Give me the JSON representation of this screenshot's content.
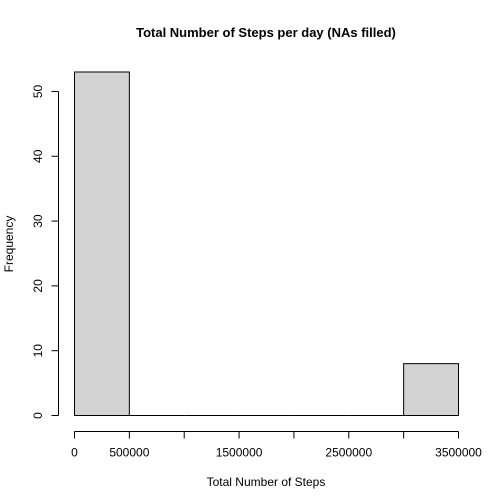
{
  "chart_data": {
    "type": "bar",
    "title": "Total Number of Steps per day (NAs filled)",
    "xlabel": "Total Number of Steps",
    "ylabel": "Frequency",
    "bins": [
      {
        "start": 0,
        "end": 500000,
        "count": 53
      },
      {
        "start": 500000,
        "end": 1000000,
        "count": 0
      },
      {
        "start": 1000000,
        "end": 1500000,
        "count": 0
      },
      {
        "start": 1500000,
        "end": 2000000,
        "count": 0
      },
      {
        "start": 2000000,
        "end": 2500000,
        "count": 0
      },
      {
        "start": 2500000,
        "end": 3000000,
        "count": 0
      },
      {
        "start": 3000000,
        "end": 3500000,
        "count": 8
      }
    ],
    "xlim": [
      0,
      3500000
    ],
    "ylim": [
      0,
      53
    ],
    "x_ticks": [
      0,
      500000,
      1000000,
      1500000,
      2000000,
      2500000,
      3000000,
      3500000
    ],
    "x_tick_labels": [
      "0",
      "500000",
      "",
      "1500000",
      "",
      "2500000",
      "",
      "3500000"
    ],
    "y_ticks": [
      0,
      10,
      20,
      30,
      40,
      50
    ],
    "y_tick_labels": [
      "0",
      "10",
      "20",
      "30",
      "40",
      "50"
    ],
    "bar_color": "#d3d3d3",
    "grid": false
  }
}
